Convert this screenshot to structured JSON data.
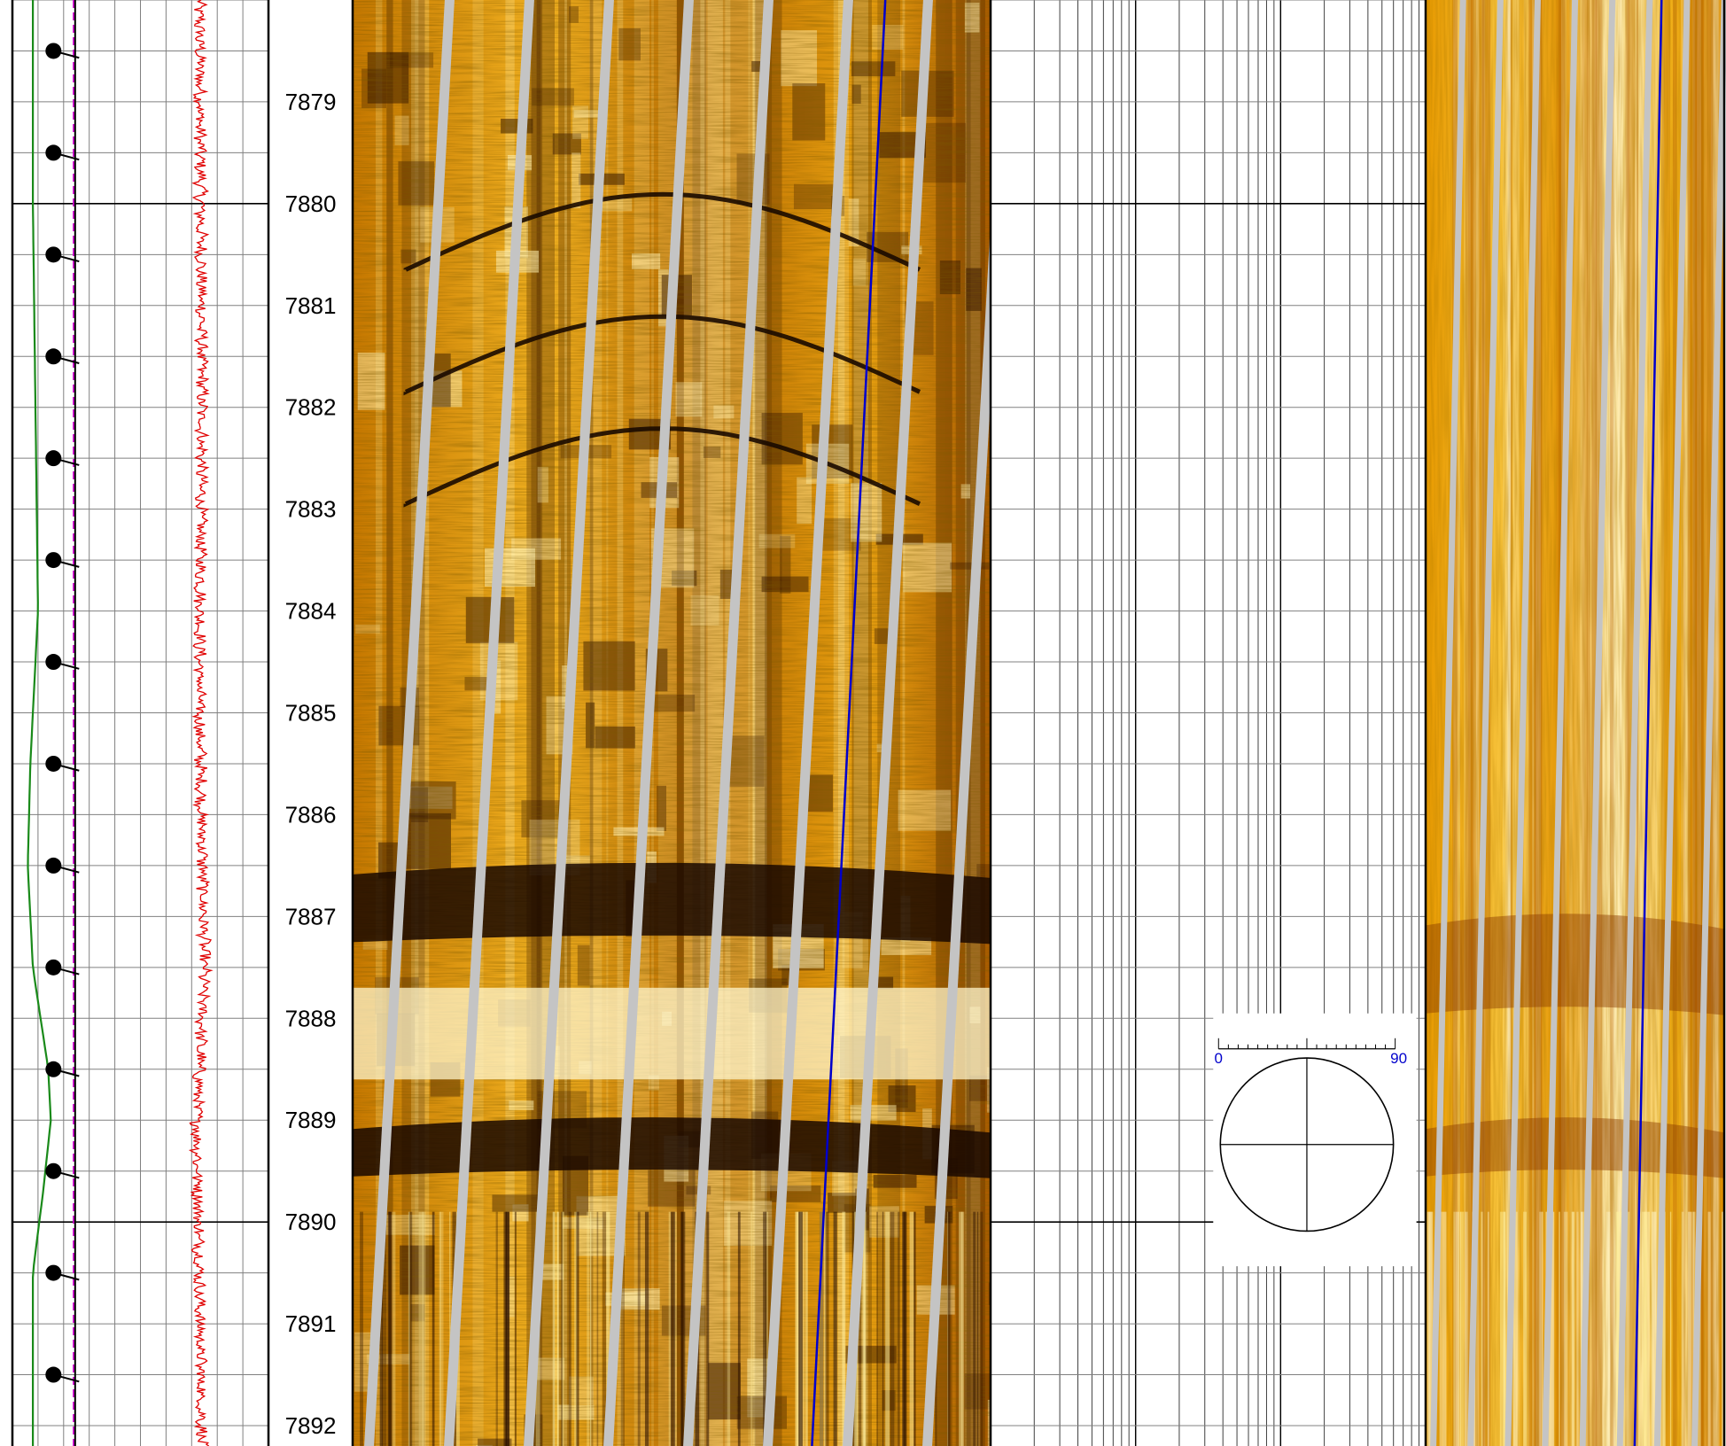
{
  "chart_data": {
    "type": "line",
    "depth_axis": {
      "ylim": [
        7878.0,
        7892.2
      ],
      "tick_labels": [
        "7879",
        "7880",
        "7881",
        "7882",
        "7883",
        "7884",
        "7885",
        "7886",
        "7887",
        "7888",
        "7889",
        "7890",
        "7891",
        "7892"
      ],
      "major_ticks": [
        7880,
        7890
      ],
      "grid": true
    },
    "tracks": [
      {
        "name": "",
        "kind": "curves",
        "grid": "linear",
        "series": [
          {
            "name": "",
            "color": "#1a8a1a",
            "depth": [
              7878.0,
              7880.0,
              7882.0,
              7884.0,
              7885.5,
              7886.5,
              7887.5,
              7888.5,
              7889.0,
              7889.7,
              7890.5,
              7892.2
            ],
            "values": [
              0.08,
              0.08,
              0.09,
              0.1,
              0.07,
              0.06,
              0.08,
              0.14,
              0.15,
              0.12,
              0.08,
              0.08
            ]
          },
          {
            "name": "",
            "color": "#d000d0",
            "dashed": true,
            "depth": [
              7878.0,
              7892.2
            ],
            "values": [
              0.24,
              0.24
            ]
          },
          {
            "name": "",
            "color": "#e00000",
            "noisy": true,
            "depth": [
              7878.0,
              7882.0,
              7885.0,
              7887.5,
              7889.0,
              7892.2
            ],
            "values": [
              0.73,
              0.74,
              0.73,
              0.75,
              0.72,
              0.74
            ]
          }
        ],
        "tadpoles": {
          "depth": [
            7878.5,
            7879.5,
            7880.5,
            7881.5,
            7882.5,
            7883.5,
            7884.5,
            7885.5,
            7886.5,
            7887.5,
            7888.5,
            7889.5,
            7890.5,
            7891.5
          ],
          "dip": [
            15,
            15,
            15,
            15,
            15,
            15,
            15,
            15,
            15,
            15,
            15,
            15,
            15,
            15
          ],
          "azimuth": [
            105,
            105,
            105,
            105,
            105,
            105,
            105,
            105,
            105,
            105,
            105,
            105,
            105,
            105
          ]
        }
      },
      {
        "name": "",
        "kind": "image",
        "image_type": "static",
        "features": [
          {
            "type": "fracture-sinusoid",
            "depth": 7880.3
          },
          {
            "type": "fracture-sinusoid",
            "depth": 7881.5
          },
          {
            "type": "fracture-sinusoid",
            "depth": 7882.6
          },
          {
            "type": "dark-bed",
            "top": 7886.5,
            "base": 7887.2
          },
          {
            "type": "bright-bed",
            "top": 7887.7,
            "base": 7888.6
          },
          {
            "type": "dark-bed",
            "top": 7889.0,
            "base": 7889.5
          },
          {
            "type": "texture-change",
            "depth": 7889.9
          }
        ],
        "trace_color": "#0000cc"
      },
      {
        "name": "",
        "kind": "empty",
        "grid": "logarithmic",
        "dip_stereonet": {
          "depth": 7888.3,
          "scale_min": "0",
          "scale_max": "90"
        }
      },
      {
        "name": "",
        "kind": "image",
        "image_type": "dynamic",
        "features": [
          {
            "type": "dark-band",
            "top": 7887.0,
            "base": 7887.9
          },
          {
            "type": "dark-band",
            "top": 7889.0,
            "base": 7889.5
          },
          {
            "type": "texture-change",
            "depth": 7889.9
          }
        ],
        "trace_color": "#0000cc"
      }
    ]
  }
}
